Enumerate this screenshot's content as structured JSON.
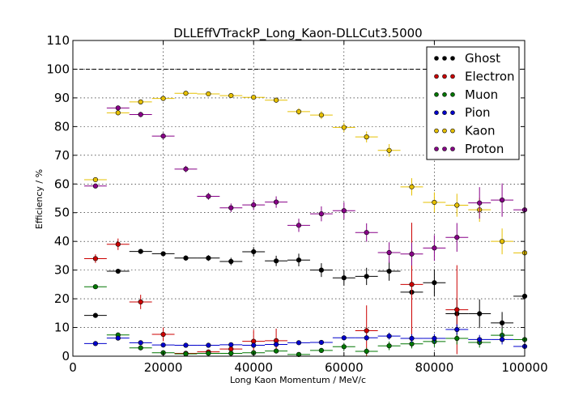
{
  "chart_data": {
    "type": "scatter",
    "title": "DLLEffVTrackP_Long_Kaon-DLLCut3.5000",
    "xlabel": "Long Kaon Momentum / MeV/c",
    "ylabel": "Efficiency / %",
    "xlim": [
      0,
      100000
    ],
    "ylim": [
      0,
      110
    ],
    "xticks": [
      "0",
      "20000",
      "40000",
      "60000",
      "80000",
      "100000"
    ],
    "yticks": [
      "0",
      "10",
      "20",
      "30",
      "40",
      "50",
      "60",
      "70",
      "80",
      "90",
      "100",
      "110"
    ],
    "grid": true,
    "reference_line_y": 100,
    "legend_position": "top-right",
    "bin_half_width": 2500,
    "x": [
      5000,
      10000,
      15000,
      20000,
      25000,
      30000,
      35000,
      40000,
      45000,
      50000,
      55000,
      60000,
      65000,
      70000,
      75000,
      80000,
      85000,
      90000,
      95000,
      100000
    ],
    "series": [
      {
        "name": "Ghost",
        "color": "#000000",
        "y": [
          14.2,
          29.6,
          36.5,
          35.7,
          34.2,
          34.2,
          33.0,
          36.4,
          33.2,
          33.5,
          30.0,
          27.3,
          27.8,
          29.6,
          22.3,
          25.6,
          14.8,
          14.8,
          11.6,
          20.9
        ],
        "err": [
          0.5,
          0.7,
          0.8,
          0.8,
          0.9,
          1.0,
          1.3,
          1.6,
          1.8,
          2.2,
          2.4,
          2.7,
          3.0,
          3.3,
          4.0,
          4.7,
          5.0,
          5.0,
          3.8,
          5.5
        ]
      },
      {
        "name": "Electron",
        "color": "#cc0000",
        "y": [
          34.0,
          39.0,
          18.9,
          7.6,
          1.0,
          1.5,
          2.5,
          5.2,
          5.4,
          null,
          null,
          null,
          8.9,
          null,
          25.0,
          null,
          16.2,
          null,
          null,
          null
        ],
        "err": [
          1.5,
          2.0,
          2.5,
          2.4,
          0.5,
          0.7,
          1.5,
          4.0,
          4.2,
          null,
          null,
          null,
          8.8,
          null,
          21.5,
          null,
          15.5,
          null,
          null,
          null
        ]
      },
      {
        "name": "Muon",
        "color": "#007700",
        "y": [
          24.2,
          7.4,
          2.9,
          1.2,
          0.8,
          1.0,
          1.0,
          1.2,
          1.8,
          0.6,
          2.0,
          3.3,
          1.7,
          3.6,
          4.3,
          5.1,
          6.2,
          4.8,
          7.3,
          5.8
        ],
        "err": [
          0.8,
          0.7,
          0.5,
          0.4,
          0.4,
          0.4,
          0.5,
          0.6,
          0.8,
          0.5,
          0.8,
          1.2,
          1.2,
          1.5,
          1.6,
          1.8,
          2.1,
          1.8,
          2.3,
          2.0
        ]
      },
      {
        "name": "Pion",
        "color": "#0000cc",
        "y": [
          4.4,
          6.3,
          4.7,
          3.9,
          3.8,
          3.8,
          4.0,
          3.8,
          4.1,
          4.7,
          4.8,
          6.4,
          6.4,
          7.0,
          6.2,
          6.2,
          9.3,
          5.8,
          5.8,
          3.4
        ],
        "err": [
          0.3,
          0.4,
          0.4,
          0.3,
          0.4,
          0.4,
          0.4,
          0.5,
          0.6,
          0.7,
          0.8,
          0.9,
          1.0,
          1.2,
          1.4,
          1.5,
          1.8,
          1.6,
          1.7,
          1.5
        ]
      },
      {
        "name": "Kaon",
        "color": "#e6c000",
        "y": [
          61.5,
          84.8,
          88.6,
          89.8,
          91.6,
          91.4,
          90.8,
          90.2,
          89.2,
          85.2,
          84.0,
          79.7,
          76.4,
          71.7,
          59.0,
          53.6,
          52.6,
          51.0,
          40.0,
          36.0
        ],
        "err": [
          0.6,
          0.5,
          0.5,
          0.5,
          0.6,
          0.6,
          0.7,
          0.8,
          0.9,
          1.2,
          1.4,
          1.6,
          1.9,
          2.2,
          3.0,
          3.5,
          4.0,
          4.2,
          4.5,
          4.5
        ]
      },
      {
        "name": "Proton",
        "color": "#880088",
        "y": [
          59.3,
          86.5,
          84.2,
          76.7,
          65.2,
          55.7,
          51.7,
          52.7,
          53.7,
          45.6,
          49.6,
          50.7,
          43.1,
          36.1,
          35.6,
          37.7,
          41.4,
          53.4,
          54.4,
          51.0
        ],
        "err": [
          0.6,
          0.7,
          0.9,
          1.0,
          1.1,
          1.2,
          1.5,
          1.8,
          2.0,
          2.3,
          2.6,
          2.9,
          3.2,
          3.6,
          4.0,
          4.5,
          5.0,
          5.5,
          5.8,
          6.5
        ]
      }
    ]
  }
}
